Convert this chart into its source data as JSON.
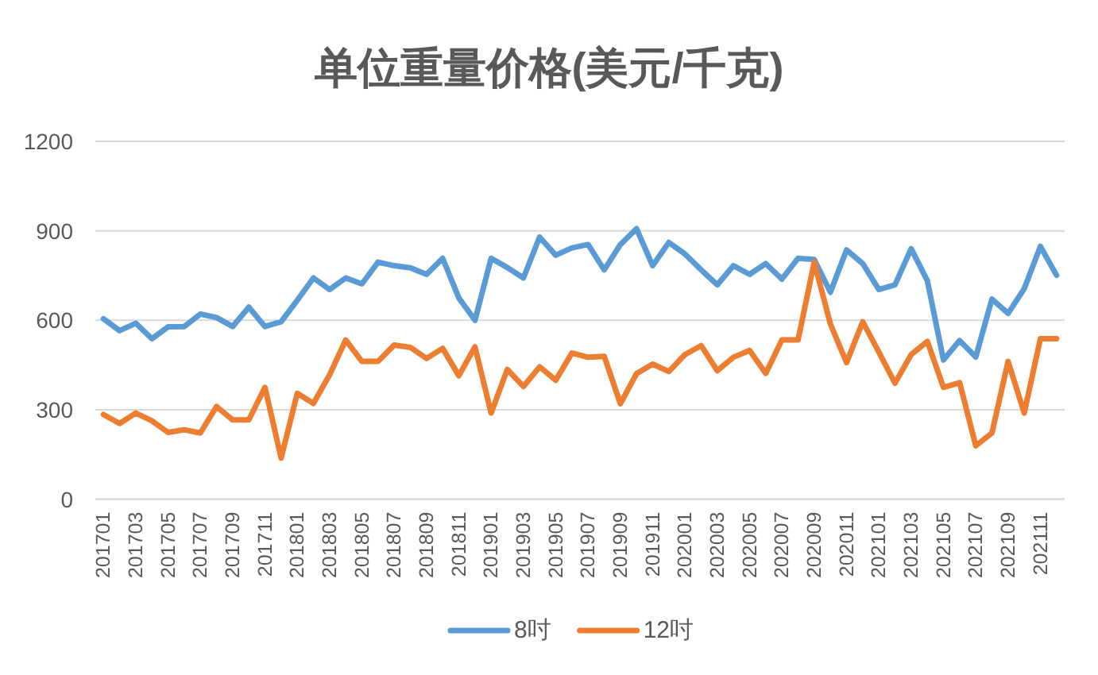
{
  "chart_data": {
    "type": "line",
    "title": "单位重量价格(美元/千克)",
    "categories": [
      "201701",
      null,
      "201703",
      null,
      "201705",
      null,
      "201707",
      null,
      "201709",
      null,
      "201711",
      null,
      "201801",
      null,
      "201803",
      null,
      "201805",
      null,
      "201807",
      null,
      "201809",
      null,
      "201811",
      null,
      "201901",
      null,
      "201903",
      null,
      "201905",
      null,
      "201907",
      null,
      "201909",
      null,
      "201911",
      null,
      "202001",
      null,
      "202003",
      null,
      "202005",
      null,
      "202007",
      null,
      "202009",
      null,
      "202011",
      null,
      "202101",
      null,
      "202103",
      null,
      "202105",
      null,
      "202107",
      null,
      "202109",
      null,
      "202111",
      null
    ],
    "series": [
      {
        "name": "8吋",
        "color": "#5b9bd5",
        "values": [
          605,
          565,
          590,
          538,
          578,
          579,
          621,
          609,
          579,
          644,
          579,
          595,
          667,
          742,
          703,
          742,
          722,
          795,
          783,
          776,
          754,
          808,
          675,
          600,
          808,
          777,
          742,
          879,
          818,
          843,
          854,
          769,
          854,
          907,
          783,
          861,
          822,
          769,
          719,
          783,
          754,
          790,
          738,
          808,
          804,
          694,
          836,
          790,
          703,
          719,
          840,
          733,
          467,
          532,
          477,
          671,
          623,
          706,
          848,
          751
        ]
      },
      {
        "name": "12吋",
        "color": "#ed7d31",
        "values": [
          284,
          254,
          289,
          263,
          224,
          233,
          222,
          311,
          266,
          266,
          375,
          138,
          355,
          321,
          417,
          534,
          462,
          462,
          517,
          509,
          472,
          506,
          414,
          511,
          289,
          435,
          378,
          444,
          399,
          490,
          476,
          479,
          320,
          421,
          453,
          428,
          485,
          515,
          431,
          476,
          499,
          422,
          534,
          534,
          795,
          588,
          458,
          595,
          493,
          389,
          485,
          529,
          375,
          391,
          179,
          222,
          462,
          289,
          538,
          538
        ]
      }
    ],
    "ylim": [
      0,
      1200
    ],
    "yticks": [
      0,
      300,
      600,
      900,
      1200
    ],
    "grid": "y",
    "legend": "bottom",
    "line_style": "solid"
  }
}
